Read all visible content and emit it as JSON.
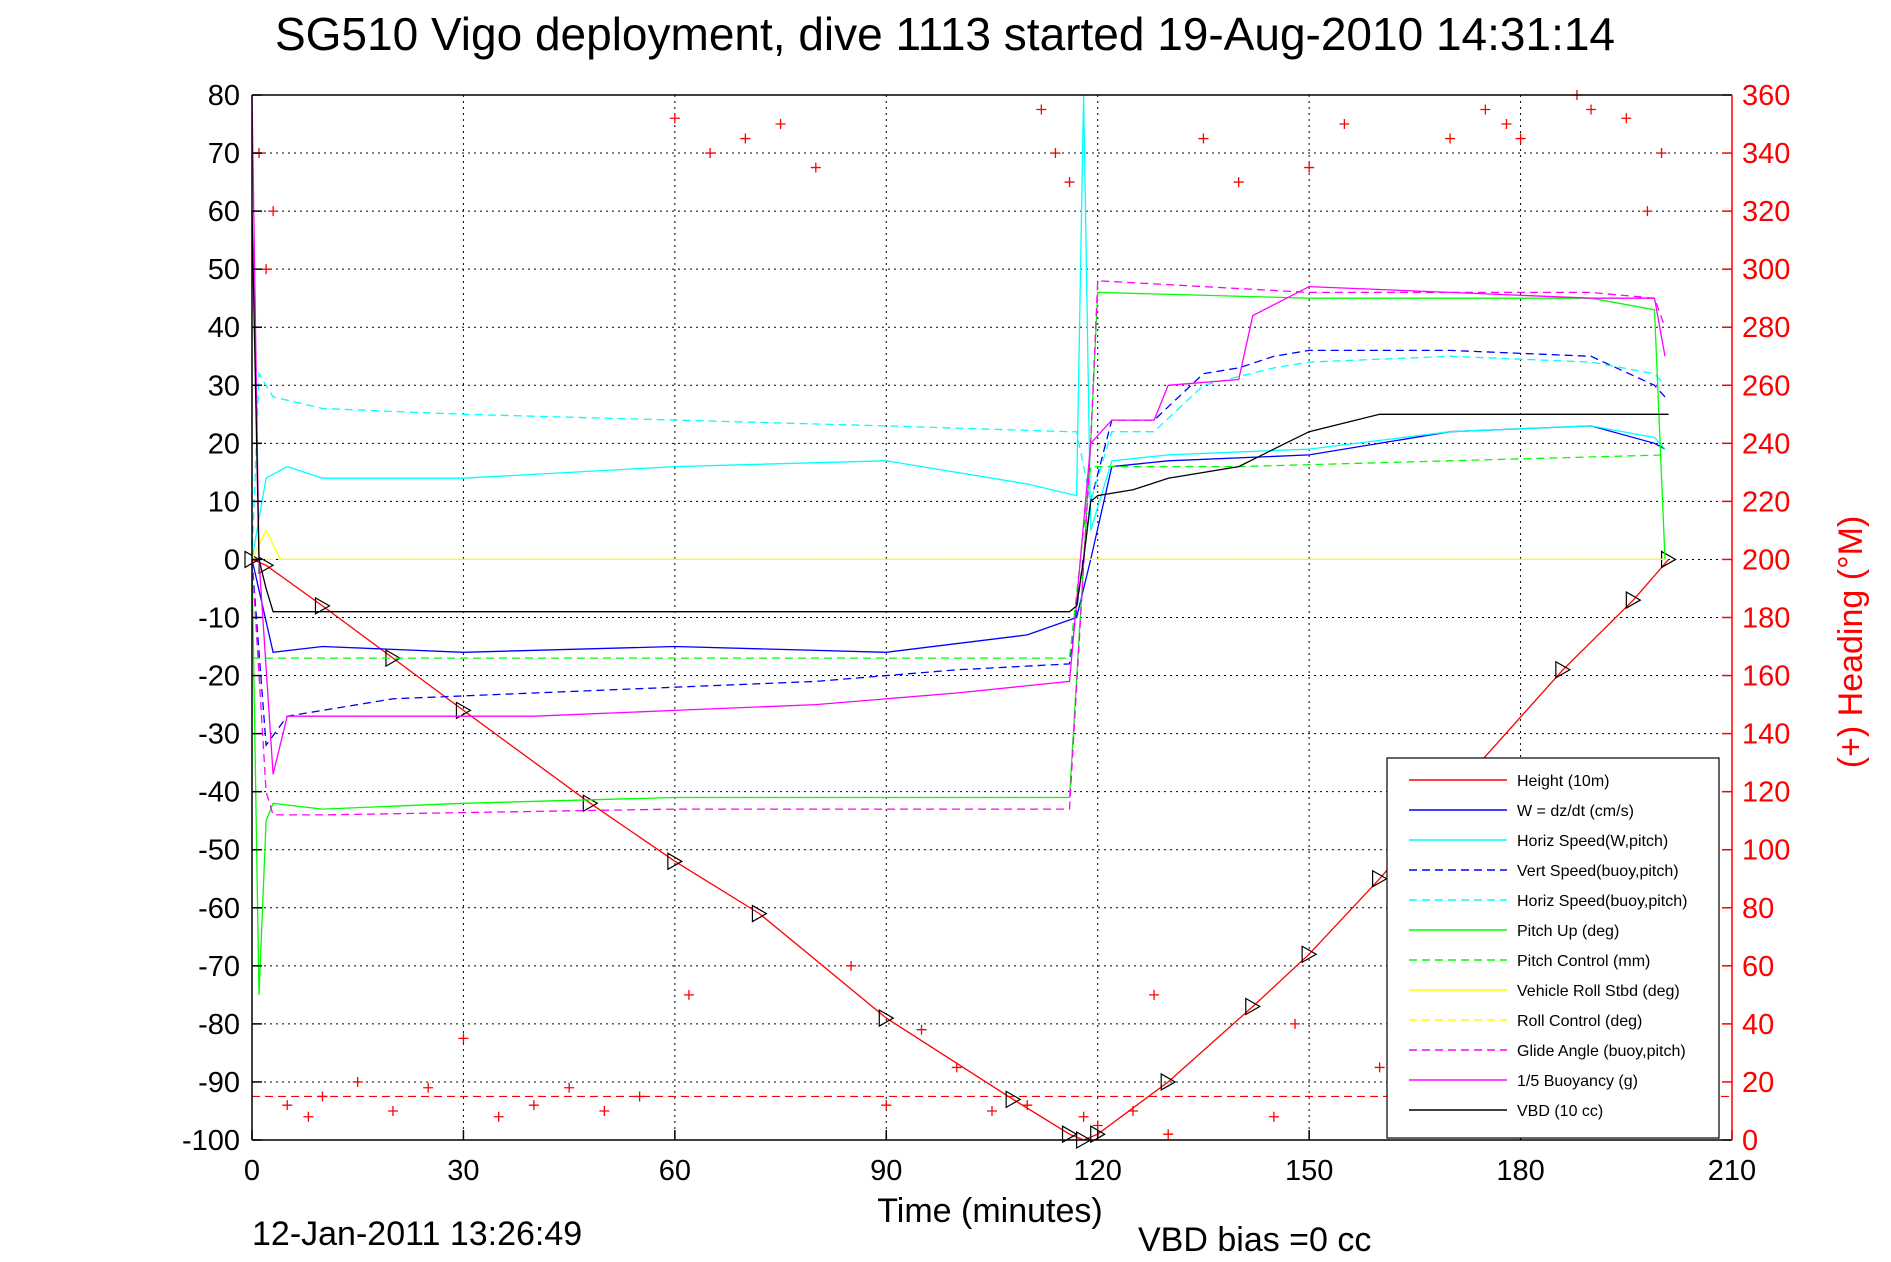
{
  "chart_data": {
    "type": "line",
    "title": "SG510 Vigo deployment, dive 1113 started 19-Aug-2010 14:31:14",
    "xlabel": "Time (minutes)",
    "ylabel_right": "(+) Heading (°M)",
    "xlim": [
      0,
      210
    ],
    "ylim_left": [
      -100,
      80
    ],
    "ylim_right": [
      0,
      360
    ],
    "xticks": [
      "0",
      "30",
      "60",
      "90",
      "120",
      "150",
      "180",
      "210"
    ],
    "yticks_left": [
      "80",
      "70",
      "60",
      "50",
      "40",
      "30",
      "20",
      "10",
      "0",
      "-10",
      "-20",
      "-30",
      "-40",
      "-50",
      "-60",
      "-70",
      "-80",
      "-90",
      "-100"
    ],
    "yticks_right": [
      "360",
      "340",
      "320",
      "300",
      "280",
      "260",
      "240",
      "220",
      "200",
      "180",
      "160",
      "140",
      "120",
      "100",
      "80",
      "60",
      "40",
      "20",
      "0"
    ],
    "grid": true,
    "legend_position": "bottom-right",
    "date_stamp": "12-Jan-2011 13:26:49",
    "vbd_bias": "VBD bias =0 cc",
    "colors": {
      "red": "#ff0000",
      "blue": "#0000ff",
      "cyan": "#00ffff",
      "green": "#00ff00",
      "yellow": "#ffff00",
      "magenta": "#ff00ff",
      "black": "#000000"
    },
    "series": [
      {
        "name": "Height (10m)",
        "color": "#ff0000",
        "style": "solid",
        "marker": "triangle",
        "x": [
          0,
          2,
          10,
          20,
          30,
          48,
          60,
          72,
          90,
          108,
          116,
          118,
          120,
          130,
          142,
          150,
          160,
          172,
          186,
          196,
          201
        ],
        "y": [
          0,
          -1,
          -8,
          -17,
          -26,
          -42,
          -52,
          -61,
          -79,
          -93,
          -99,
          -100,
          -99,
          -90,
          -77,
          -68,
          -55,
          -38,
          -19,
          -7,
          0
        ]
      },
      {
        "name": "W = dz/dt (cm/s)",
        "color": "#0000ff",
        "style": "solid",
        "x": [
          0,
          3,
          10,
          30,
          60,
          90,
          110,
          117,
          119,
          122,
          130,
          150,
          170,
          190,
          199,
          200.5
        ],
        "y": [
          0,
          -16,
          -15,
          -16,
          -15,
          -16,
          -13,
          -10,
          0,
          16,
          17,
          18,
          22,
          23,
          20,
          19
        ]
      },
      {
        "name": "Horiz Speed(W,pitch)",
        "color": "#00ffff",
        "style": "solid",
        "x": [
          0,
          2,
          5,
          10,
          30,
          60,
          90,
          110,
          117,
          118,
          119,
          122,
          130,
          150,
          170,
          190,
          199,
          200.5
        ],
        "y": [
          0,
          14,
          16,
          14,
          14,
          16,
          17,
          13,
          11,
          80,
          5,
          17,
          18,
          19,
          22,
          23,
          21,
          19
        ]
      },
      {
        "name": "Vert Speed(buoy,pitch)",
        "color": "#0000ff",
        "style": "dashed",
        "x": [
          0,
          2,
          5,
          20,
          40,
          60,
          80,
          100,
          116,
          119,
          122,
          128,
          135,
          140,
          145,
          150,
          170,
          190,
          199,
          200.5
        ],
        "y": [
          0,
          -32,
          -27,
          -24,
          -23,
          -22,
          -21,
          -19,
          -18,
          10,
          24,
          24,
          32,
          33,
          35,
          36,
          36,
          35,
          30,
          28
        ]
      },
      {
        "name": "Horiz Speed(buoy,pitch)",
        "color": "#00ffff",
        "style": "dashed",
        "x": [
          0,
          1,
          3,
          10,
          30,
          60,
          90,
          116,
          117,
          119,
          122,
          128,
          135,
          145,
          150,
          170,
          190,
          199,
          200.5
        ],
        "y": [
          0,
          32,
          28,
          26,
          25,
          24,
          23,
          22,
          22,
          10,
          22,
          22,
          30,
          33,
          34,
          35,
          34,
          32,
          30
        ]
      },
      {
        "name": "Pitch Up (deg)",
        "color": "#00ff00",
        "style": "solid",
        "x": [
          0,
          1,
          2,
          3,
          10,
          30,
          60,
          90,
          116,
          119,
          120,
          150,
          190,
          199,
          200.5
        ],
        "y": [
          0,
          -75,
          -45,
          -42,
          -43,
          -42,
          -41,
          -41,
          -41,
          20,
          46,
          45,
          45,
          43,
          0
        ]
      },
      {
        "name": "Pitch Control (mm)",
        "color": "#00ff00",
        "style": "dashed",
        "x": [
          0,
          5,
          60,
          116,
          119,
          140,
          170,
          200.5
        ],
        "y": [
          -17,
          -17,
          -17,
          -17,
          16,
          16,
          17,
          18
        ]
      },
      {
        "name": "Vehicle Roll Stbd (deg)",
        "color": "#ffff00",
        "style": "solid",
        "x": [
          0,
          2,
          4,
          10,
          15,
          20,
          30,
          40,
          48,
          50,
          60,
          80,
          90,
          100,
          110,
          118,
          120,
          130,
          150,
          170,
          190,
          200.5
        ],
        "y": [
          0,
          5,
          0,
          0,
          0,
          0,
          0,
          0,
          0,
          0,
          0,
          0,
          0,
          0,
          0,
          0,
          0,
          0,
          0,
          0,
          0,
          0
        ]
      },
      {
        "name": "Roll Control (deg)",
        "color": "#ffff00",
        "style": "dashed",
        "x": [
          0,
          5,
          200.5
        ],
        "y": [
          0,
          0,
          0
        ]
      },
      {
        "name": "Glide Angle (buoy,pitch)",
        "color": "#ff00ff",
        "style": "dashed",
        "x": [
          0,
          2,
          3,
          10,
          60,
          116,
          119,
          120,
          150,
          190,
          199,
          200.5
        ],
        "y": [
          0,
          -40,
          -44,
          -44,
          -43,
          -43,
          20,
          48,
          46,
          46,
          45,
          40
        ]
      },
      {
        "name": "1/5 Buoyancy (g)",
        "color": "#ff00ff",
        "style": "solid",
        "x": [
          0,
          1,
          3,
          5,
          20,
          40,
          60,
          80,
          100,
          116,
          119,
          122,
          128,
          130,
          140,
          142,
          150,
          170,
          190,
          199,
          200.5
        ],
        "y": [
          80,
          0,
          -37,
          -27,
          -27,
          -27,
          -26,
          -25,
          -23,
          -21,
          20,
          24,
          24,
          30,
          31,
          42,
          47,
          46,
          45,
          45,
          35
        ]
      },
      {
        "name": "VBD (10 cc)",
        "color": "#000000",
        "style": "solid",
        "x": [
          0,
          1,
          2,
          3,
          116,
          117,
          118,
          119,
          120,
          125,
          130,
          140,
          145,
          150,
          160,
          170,
          180,
          190,
          200,
          201
        ],
        "y": [
          60,
          0,
          -5,
          -9,
          -9,
          -8,
          0,
          10,
          11,
          12,
          14,
          16,
          19,
          22,
          25,
          25,
          25,
          25,
          25,
          25
        ]
      }
    ],
    "heading_points": {
      "name": "(+) Heading (°M)",
      "color": "#ff0000",
      "marker": "+",
      "axis": "right",
      "x": [
        1,
        2,
        3,
        5,
        8,
        10,
        15,
        20,
        25,
        30,
        35,
        40,
        45,
        50,
        55,
        60,
        62,
        65,
        70,
        75,
        80,
        85,
        90,
        95,
        100,
        105,
        110,
        112,
        114,
        116,
        118,
        120,
        125,
        128,
        130,
        135,
        140,
        145,
        148,
        150,
        155,
        160,
        165,
        170,
        175,
        178,
        180,
        185,
        188,
        190,
        195,
        198,
        200
      ],
      "y": [
        340,
        300,
        320,
        12,
        8,
        15,
        20,
        10,
        18,
        35,
        8,
        12,
        18,
        10,
        15,
        352,
        50,
        340,
        345,
        350,
        335,
        60,
        12,
        38,
        25,
        10,
        12,
        355,
        340,
        330,
        8,
        5,
        10,
        50,
        2,
        345,
        330,
        8,
        40,
        335,
        350,
        25,
        52,
        345,
        355,
        350,
        345,
        8,
        360,
        355,
        352,
        320,
        340
      ]
    }
  }
}
